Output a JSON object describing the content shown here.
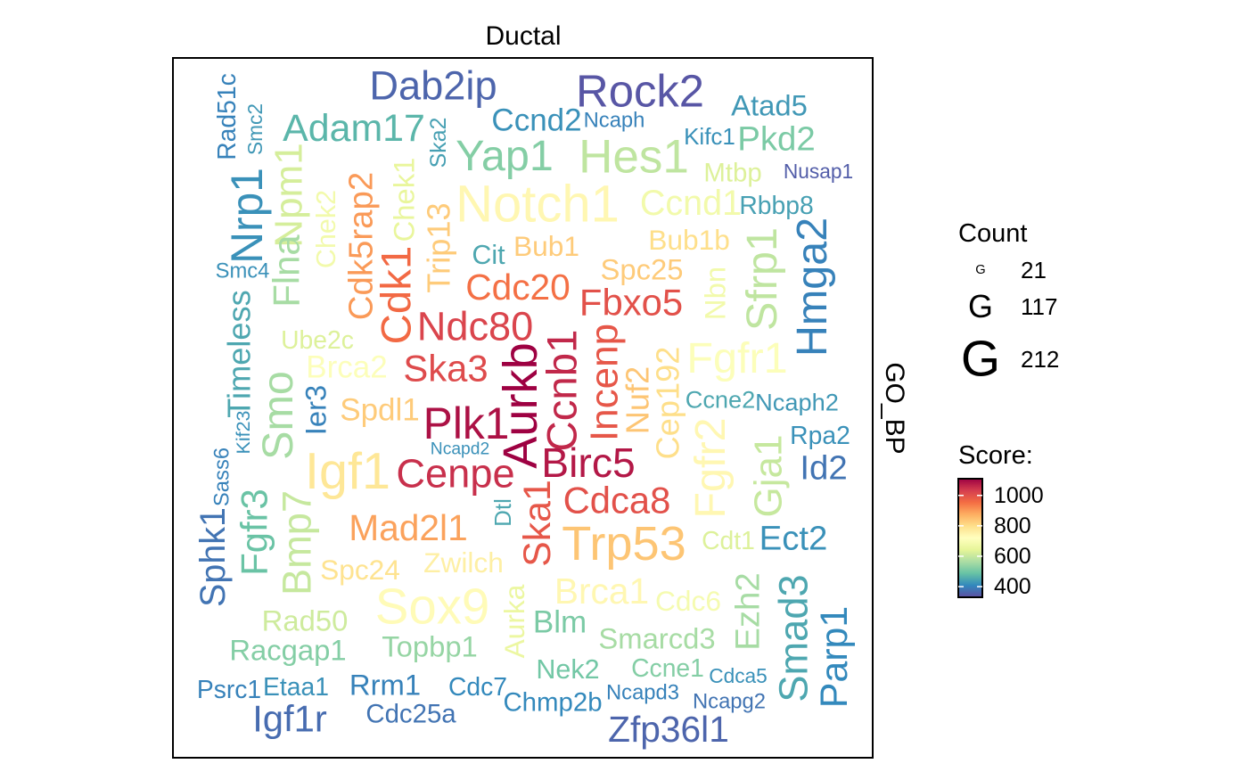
{
  "chart_data": {
    "type": "wordcloud",
    "title": "Ductal",
    "strip_label": "GO_BP",
    "legend_size": {
      "title": "Count",
      "glyph": "G",
      "entries": [
        {
          "label": "21",
          "count": 21
        },
        {
          "label": "117",
          "count": 117
        },
        {
          "label": "212",
          "count": 212
        }
      ]
    },
    "legend_color": {
      "title": "Score:",
      "ticks": [
        "1000",
        "800",
        "600",
        "400"
      ],
      "tick_values": [
        1000,
        800,
        600,
        400
      ],
      "range": [
        330,
        1110
      ],
      "palette": [
        "#5E4FA2",
        "#3288BD",
        "#66C2A5",
        "#ABDDA4",
        "#E6F598",
        "#FFFFBF",
        "#FEE08B",
        "#FDAE61",
        "#F46D43",
        "#D53E4F",
        "#9E0142"
      ]
    },
    "words": [
      {
        "text": "Dab2ip",
        "count": 155,
        "score": 360
      },
      {
        "text": "Rock2",
        "count": 180,
        "score": 340
      },
      {
        "text": "Atad5",
        "count": 100,
        "score": 430
      },
      {
        "text": "Rad51c",
        "count": 80,
        "score": 400
      },
      {
        "text": "Smc2",
        "count": 55,
        "score": 430
      },
      {
        "text": "Ska2",
        "count": 65,
        "score": 440
      },
      {
        "text": "Ccnd2",
        "count": 110,
        "score": 420
      },
      {
        "text": "Ncaph",
        "count": 60,
        "score": 400
      },
      {
        "text": "Adam17",
        "count": 145,
        "score": 470
      },
      {
        "text": "Kifc1",
        "count": 70,
        "score": 420
      },
      {
        "text": "Pkd2",
        "count": 125,
        "score": 510
      },
      {
        "text": "Yap1",
        "count": 170,
        "score": 520
      },
      {
        "text": "Hes1",
        "count": 190,
        "score": 590
      },
      {
        "text": "Mtbp",
        "count": 85,
        "score": 630
      },
      {
        "text": "Nusap1",
        "count": 55,
        "score": 350
      },
      {
        "text": "Nrp1",
        "count": 175,
        "score": 420
      },
      {
        "text": "Npm1",
        "count": 150,
        "score": 620
      },
      {
        "text": "Chek2",
        "count": 90,
        "score": 680
      },
      {
        "text": "Cdk5rap2",
        "count": 125,
        "score": 900
      },
      {
        "text": "Chek1",
        "count": 100,
        "score": 650
      },
      {
        "text": "Trip13",
        "count": 115,
        "score": 830
      },
      {
        "text": "Notch1",
        "count": 212,
        "score": 740
      },
      {
        "text": "Ccnd1",
        "count": 130,
        "score": 680
      },
      {
        "text": "Rbbp8",
        "count": 80,
        "score": 440
      },
      {
        "text": "Smc4",
        "count": 60,
        "score": 420
      },
      {
        "text": "Flna",
        "count": 140,
        "score": 560
      },
      {
        "text": "Cdk1",
        "count": 165,
        "score": 960
      },
      {
        "text": "Cit",
        "count": 90,
        "score": 450
      },
      {
        "text": "Bub1",
        "count": 95,
        "score": 830
      },
      {
        "text": "Bub1b",
        "count": 95,
        "score": 800
      },
      {
        "text": "Spc25",
        "count": 100,
        "score": 830
      },
      {
        "text": "Sfrp1",
        "count": 170,
        "score": 590
      },
      {
        "text": "Hmga2",
        "count": 170,
        "score": 400
      },
      {
        "text": "Cdc20",
        "count": 135,
        "score": 950
      },
      {
        "text": "Fbxo5",
        "count": 140,
        "score": 1000
      },
      {
        "text": "Nbn",
        "count": 100,
        "score": 680
      },
      {
        "text": "Timeless",
        "count": 115,
        "score": 450
      },
      {
        "text": "Ube2c",
        "count": 80,
        "score": 630
      },
      {
        "text": "Ndc80",
        "count": 155,
        "score": 1020
      },
      {
        "text": "Brca2",
        "count": 110,
        "score": 710
      },
      {
        "text": "Ska3",
        "count": 140,
        "score": 1010
      },
      {
        "text": "Aurkb",
        "count": 195,
        "score": 1110
      },
      {
        "text": "Ccnb1",
        "count": 165,
        "score": 1060
      },
      {
        "text": "Incenp",
        "count": 150,
        "score": 990
      },
      {
        "text": "Nuf2",
        "count": 115,
        "score": 840
      },
      {
        "text": "Cep192",
        "count": 115,
        "score": 800
      },
      {
        "text": "Fgfr1",
        "count": 170,
        "score": 710
      },
      {
        "text": "Smo",
        "count": 170,
        "score": 560
      },
      {
        "text": "Ier3",
        "count": 100,
        "score": 400
      },
      {
        "text": "Spdl1",
        "count": 110,
        "score": 830
      },
      {
        "text": "Plk1",
        "count": 175,
        "score": 1090
      },
      {
        "text": "Ccne2",
        "count": 75,
        "score": 450
      },
      {
        "text": "Ncaph2",
        "count": 75,
        "score": 430
      },
      {
        "text": "Kif23",
        "count": 50,
        "score": 420
      },
      {
        "text": "Ncapd2",
        "count": 40,
        "score": 420
      },
      {
        "text": "Igf1",
        "count": 210,
        "score": 780
      },
      {
        "text": "Cenpe",
        "count": 155,
        "score": 1050
      },
      {
        "text": "Birc5",
        "count": 160,
        "score": 1080
      },
      {
        "text": "Fgfr2",
        "count": 170,
        "score": 740
      },
      {
        "text": "Gja1",
        "count": 150,
        "score": 600
      },
      {
        "text": "Rpa2",
        "count": 80,
        "score": 420
      },
      {
        "text": "Id2",
        "count": 125,
        "score": 380
      },
      {
        "text": "Sass6",
        "count": 60,
        "score": 400
      },
      {
        "text": "Cdca8",
        "count": 140,
        "score": 1000
      },
      {
        "text": "Sphk1",
        "count": 130,
        "score": 380
      },
      {
        "text": "Fgfr3",
        "count": 140,
        "score": 490
      },
      {
        "text": "Bmp7",
        "count": 155,
        "score": 600
      },
      {
        "text": "Mad2l1",
        "count": 135,
        "score": 890
      },
      {
        "text": "Dtl",
        "count": 70,
        "score": 450
      },
      {
        "text": "Ska1",
        "count": 145,
        "score": 990
      },
      {
        "text": "Trp53",
        "count": 195,
        "score": 840
      },
      {
        "text": "Cdt1",
        "count": 80,
        "score": 630
      },
      {
        "text": "Ect2",
        "count": 125,
        "score": 420
      },
      {
        "text": "Spc24",
        "count": 95,
        "score": 790
      },
      {
        "text": "Zwilch",
        "count": 95,
        "score": 760
      },
      {
        "text": "Sox9",
        "count": 205,
        "score": 730
      },
      {
        "text": "Brca1",
        "count": 135,
        "score": 740
      },
      {
        "text": "Cdc6",
        "count": 95,
        "score": 690
      },
      {
        "text": "Ezh2",
        "count": 125,
        "score": 560
      },
      {
        "text": "Smad3",
        "count": 155,
        "score": 450
      },
      {
        "text": "Parp1",
        "count": 145,
        "score": 410
      },
      {
        "text": "Aurka",
        "count": 95,
        "score": 660
      },
      {
        "text": "Blm",
        "count": 110,
        "score": 510
      },
      {
        "text": "Rad50",
        "count": 100,
        "score": 610
      },
      {
        "text": "Racgap1",
        "count": 100,
        "score": 520
      },
      {
        "text": "Topbp1",
        "count": 100,
        "score": 540
      },
      {
        "text": "Smarcd3",
        "count": 100,
        "score": 560
      },
      {
        "text": "Nek2",
        "count": 90,
        "score": 500
      },
      {
        "text": "Ccne1",
        "count": 80,
        "score": 520
      },
      {
        "text": "Cdca5",
        "count": 55,
        "score": 420
      },
      {
        "text": "Psrc1",
        "count": 80,
        "score": 400
      },
      {
        "text": "Etaa1",
        "count": 80,
        "score": 420
      },
      {
        "text": "Rrm1",
        "count": 100,
        "score": 400
      },
      {
        "text": "Cdc7",
        "count": 80,
        "score": 410
      },
      {
        "text": "Ncapd3",
        "count": 60,
        "score": 400
      },
      {
        "text": "Ncapg2",
        "count": 60,
        "score": 380
      },
      {
        "text": "Igf1r",
        "count": 140,
        "score": 370
      },
      {
        "text": "Cdc25a",
        "count": 85,
        "score": 380
      },
      {
        "text": "Chmp2b",
        "count": 85,
        "score": 410
      },
      {
        "text": "Zfp36l1",
        "count": 135,
        "score": 360
      }
    ]
  }
}
